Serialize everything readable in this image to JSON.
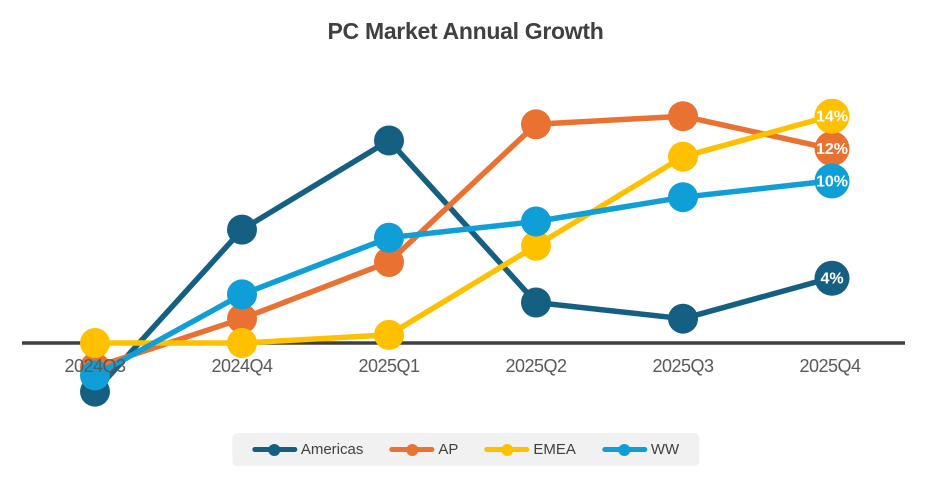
{
  "title": "PC Market Annual Growth",
  "chart_data": {
    "type": "line",
    "title": "PC Market Annual Growth",
    "categories": [
      "2024Q3",
      "2024Q4",
      "2025Q1",
      "2025Q2",
      "2025Q3",
      "2025Q4"
    ],
    "series": [
      {
        "name": "Americas",
        "color": "#156082",
        "values": [
          -3,
          7,
          12.5,
          2.5,
          1.5,
          4
        ],
        "end_label": "4%"
      },
      {
        "name": "AP",
        "color": "#E97132",
        "values": [
          -1.5,
          1.5,
          5,
          13.5,
          14,
          12
        ],
        "end_label": "12%"
      },
      {
        "name": "EMEA",
        "color": "#FFC000",
        "values": [
          0,
          0,
          0.5,
          6,
          11.5,
          14
        ],
        "end_label": "14%"
      },
      {
        "name": "WW",
        "color": "#0F9ED5",
        "values": [
          -2,
          3,
          6.5,
          7.5,
          9,
          10
        ],
        "end_label": "10%"
      }
    ],
    "xlabel": "",
    "ylabel": "",
    "ylim": [
      -4,
      16
    ],
    "grid": false,
    "y_axis_shown": false,
    "legend_position": "bottom",
    "unit": "%",
    "axis_line_color": "#404040",
    "tick_label_color": "#595959",
    "title_color": "#404040",
    "legend_background": "#f1f1f1",
    "end_label_text_color": "#ffffff"
  }
}
